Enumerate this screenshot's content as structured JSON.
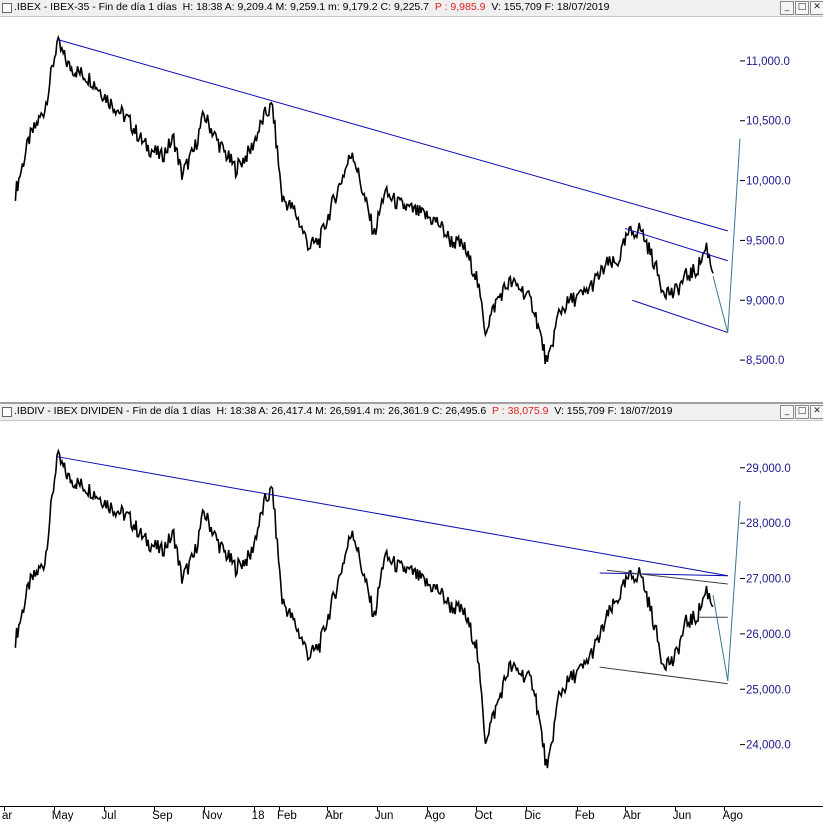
{
  "top_panel": {
    "title_prefix": ".IBEX - IBEX-35 - Fin de día 1 días",
    "stats": "H: 18:38  A: 9,209.4  M: 9,259.1  m: 9,179.2  C: 9,225.7",
    "stat_p": "P : 9,985.9",
    "stats_tail": "V: 155,709  F: 18/07/2019",
    "buttons": [
      "_",
      "□",
      "✕"
    ]
  },
  "bottom_panel": {
    "title_prefix": ".IBDIV - IBEX DIVIDEN - Fin de día 1 días",
    "stats": "H: 18:38  A: 26,417.4  M: 26,591.4  m: 26,361.9  C: 26,495.6",
    "stat_p": "P : 38,075.9",
    "stats_tail": "V: 155,709  F: 18/07/2019",
    "buttons": [
      "_",
      "□",
      "✕"
    ]
  },
  "colors": {
    "price": "#000000",
    "trendline": "#0a0ab4",
    "projection": "#3c7890",
    "channel": "#404040",
    "axis_text": "#1a1a8c"
  },
  "x_axis": [
    "ar",
    "May",
    "Jul",
    "Sep",
    "Nov",
    "18",
    "Feb",
    "Abr",
    "Jun",
    "Ago",
    "Oct",
    "Dic",
    "Feb",
    "Abr",
    "Jun",
    "Ago"
  ],
  "chart_data": [
    {
      "type": "line",
      "name": ".IBEX - IBEX-35",
      "ylim": [
        8200,
        11300
      ],
      "yticks": [
        "8,500.0",
        "9,000.0",
        "9,500.0",
        "10,000.0",
        "10,500.0",
        "11,000.0"
      ],
      "ytick_values": [
        8500,
        9000,
        9500,
        10000,
        10500,
        11000
      ],
      "x": [
        "2017-03-15",
        "2017-04-01",
        "2017-04-20",
        "2017-05-05",
        "2017-05-20",
        "2017-06-15",
        "2017-07-10",
        "2017-08-01",
        "2017-08-20",
        "2017-09-10",
        "2017-09-25",
        "2017-10-05",
        "2017-10-20",
        "2017-11-01",
        "2017-11-20",
        "2017-12-10",
        "2017-12-28",
        "2018-01-15",
        "2018-01-24",
        "2018-02-05",
        "2018-02-20",
        "2018-03-10",
        "2018-03-23",
        "2018-04-10",
        "2018-05-02",
        "2018-05-15",
        "2018-05-29",
        "2018-06-10",
        "2018-06-28",
        "2018-07-15",
        "2018-08-01",
        "2018-08-15",
        "2018-08-30",
        "2018-09-15",
        "2018-10-01",
        "2018-10-12",
        "2018-10-26",
        "2018-11-10",
        "2018-11-25",
        "2018-12-10",
        "2018-12-27",
        "2019-01-10",
        "2019-01-25",
        "2019-02-10",
        "2019-02-28",
        "2019-03-10",
        "2019-03-22",
        "2019-04-05",
        "2019-04-20",
        "2019-05-05",
        "2019-05-17",
        "2019-05-31",
        "2019-06-15",
        "2019-06-28",
        "2019-07-10",
        "2019-07-18"
      ],
      "values": [
        9900,
        10350,
        10600,
        11150,
        10950,
        10850,
        10650,
        10500,
        10300,
        10200,
        10350,
        10050,
        10250,
        10550,
        10300,
        10100,
        10250,
        10550,
        10620,
        9850,
        9750,
        9450,
        9500,
        9850,
        10250,
        9900,
        9550,
        9900,
        9800,
        9750,
        9700,
        9650,
        9500,
        9450,
        9200,
        8750,
        9000,
        9150,
        9100,
        8950,
        8450,
        8900,
        9000,
        9050,
        9200,
        9300,
        9300,
        9550,
        9600,
        9350,
        9100,
        9050,
        9200,
        9250,
        9450,
        9225
      ]
    },
    {
      "type": "line",
      "name": ".IBDIV - IBEX DIVIDEN",
      "ylim": [
        23000,
        29700
      ],
      "yticks": [
        "24,000.0",
        "25,000.0",
        "26,000.0",
        "27,000.0",
        "28,000.0",
        "29,000.0"
      ],
      "ytick_values": [
        24000,
        25000,
        26000,
        27000,
        28000,
        29000
      ],
      "x": [
        "2017-03-15",
        "2017-04-01",
        "2017-04-20",
        "2017-05-05",
        "2017-05-20",
        "2017-06-15",
        "2017-07-10",
        "2017-08-01",
        "2017-08-20",
        "2017-09-10",
        "2017-09-25",
        "2017-10-05",
        "2017-10-20",
        "2017-11-01",
        "2017-11-20",
        "2017-12-10",
        "2017-12-28",
        "2018-01-15",
        "2018-01-24",
        "2018-02-05",
        "2018-02-20",
        "2018-03-10",
        "2018-03-23",
        "2018-04-10",
        "2018-05-02",
        "2018-05-15",
        "2018-05-29",
        "2018-06-10",
        "2018-06-28",
        "2018-07-15",
        "2018-08-01",
        "2018-08-15",
        "2018-08-30",
        "2018-09-15",
        "2018-10-01",
        "2018-10-12",
        "2018-10-26",
        "2018-11-10",
        "2018-11-25",
        "2018-12-10",
        "2018-12-27",
        "2019-01-10",
        "2019-01-25",
        "2019-02-10",
        "2019-02-28",
        "2019-03-10",
        "2019-03-22",
        "2019-04-05",
        "2019-04-20",
        "2019-05-05",
        "2019-05-17",
        "2019-05-31",
        "2019-06-15",
        "2019-06-28",
        "2019-07-10",
        "2019-07-18"
      ],
      "values": [
        25900,
        26900,
        27300,
        29200,
        28800,
        28600,
        28300,
        28100,
        27700,
        27500,
        27800,
        27000,
        27400,
        28200,
        27600,
        27200,
        27400,
        28400,
        28600,
        26600,
        26200,
        25600,
        25800,
        26700,
        27900,
        27100,
        26300,
        27400,
        27200,
        27100,
        26900,
        26800,
        26500,
        26400,
        25800,
        24100,
        24700,
        25400,
        25300,
        25100,
        23500,
        24900,
        25200,
        25400,
        25900,
        26300,
        26600,
        27000,
        27100,
        26300,
        25500,
        25500,
        26200,
        26300,
        26800,
        26495
      ]
    }
  ]
}
